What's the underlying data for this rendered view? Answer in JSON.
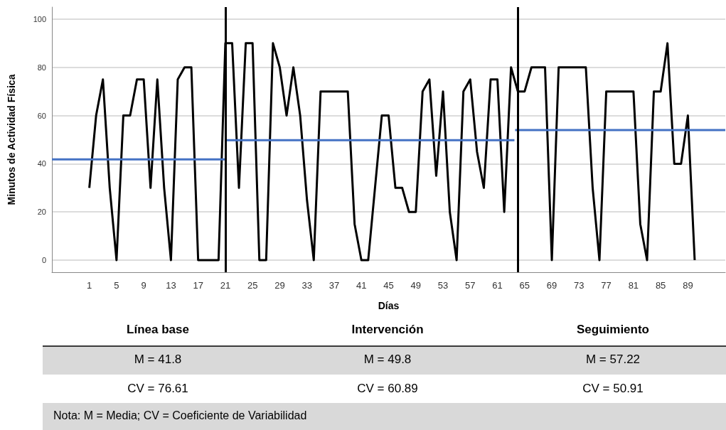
{
  "chart_data": {
    "type": "line",
    "xlabel": "Días",
    "ylabel": "Minutos de Actividad Física",
    "x": [
      1,
      2,
      3,
      4,
      5,
      6,
      7,
      8,
      9,
      10,
      11,
      12,
      13,
      14,
      15,
      16,
      17,
      18,
      19,
      20,
      21,
      22,
      23,
      24,
      25,
      26,
      27,
      28,
      29,
      30,
      31,
      32,
      33,
      34,
      35,
      36,
      37,
      38,
      39,
      40,
      41,
      42,
      43,
      44,
      45,
      46,
      47,
      48,
      49,
      50,
      51,
      52,
      53,
      54,
      55,
      56,
      57,
      58,
      59,
      60,
      61,
      62,
      63,
      64,
      65,
      66,
      67,
      68,
      69,
      70,
      71,
      72,
      73,
      74,
      75,
      76,
      77,
      78,
      79,
      80,
      81,
      82,
      83,
      84,
      85,
      86,
      87,
      88,
      89,
      90
    ],
    "series": [
      {
        "color": "#000000",
        "values": [
          30,
          60,
          75,
          30,
          0,
          60,
          60,
          75,
          75,
          30,
          75,
          30,
          0,
          75,
          80,
          80,
          0,
          0,
          0,
          0,
          90,
          90,
          30,
          90,
          90,
          0,
          0,
          90,
          80,
          60,
          80,
          60,
          25,
          0,
          70,
          70,
          70,
          70,
          70,
          15,
          0,
          0,
          30,
          60,
          60,
          30,
          30,
          20,
          20,
          70,
          75,
          35,
          70,
          20,
          0,
          70,
          75,
          45,
          30,
          75,
          75,
          20,
          80,
          70,
          70,
          80,
          80,
          80,
          0,
          80,
          80,
          80,
          80,
          80,
          30,
          0,
          70,
          70,
          70,
          70,
          70,
          15,
          0,
          70,
          70,
          90,
          40,
          40,
          60,
          0
        ]
      },
      {
        "type": "line",
        "color": "#4472c4",
        "x": [
          -4.5,
          21
        ],
        "values": [
          41.8,
          41.8
        ]
      },
      {
        "type": "line",
        "color": "#4472c4",
        "x": [
          21.1,
          63.5
        ],
        "values": [
          49.8,
          49.8
        ]
      },
      {
        "type": "line",
        "color": "#4472c4",
        "x": [
          63.6,
          94.5
        ],
        "values": [
          54,
          54
        ]
      }
    ],
    "ref_lines": [
      {
        "axis": "x",
        "value": 21,
        "color": "#000000"
      },
      {
        "axis": "x",
        "value": 64,
        "color": "#000000"
      }
    ],
    "xlim": [
      -4.5,
      94.5
    ],
    "xticks": [
      1,
      5,
      9,
      13,
      17,
      21,
      25,
      29,
      33,
      37,
      41,
      45,
      49,
      53,
      57,
      61,
      65,
      69,
      73,
      77,
      81,
      85,
      89
    ],
    "ylim": [
      -5,
      105
    ],
    "yticks": [
      0,
      20,
      40,
      60,
      80,
      100
    ],
    "grid": "y",
    "marker": "none",
    "line_style": "solid",
    "annotations": [
      "Línea base",
      "Intervención",
      "Seguimiento",
      "M = 41.8",
      "M = 49.8",
      "M = 57.22",
      "CV = 76.61",
      "CV = 60.89",
      "CV = 50.91",
      "Nota: M = Media; CV = Coeficiente de Variabilidad"
    ]
  }
}
